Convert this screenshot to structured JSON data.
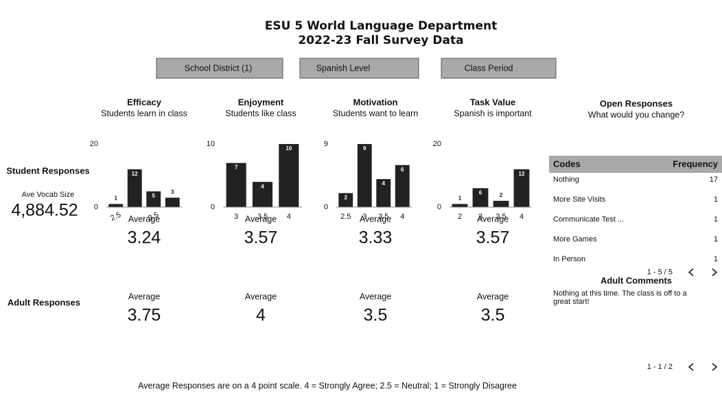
{
  "header": {
    "title": "ESU 5 World Language Department",
    "subtitle": "2022-23 Fall Survey Data"
  },
  "filters": [
    "School District (1)",
    "Spanish Level",
    "Class Period"
  ],
  "row_labels": {
    "student": "Student Responses",
    "adult": "Adult Responses"
  },
  "vocab": {
    "label": "Ave Vocab Size",
    "value": "4,884.52"
  },
  "chart_data": [
    {
      "type": "bar",
      "title": "Efficacy",
      "subtitle": "Students learn in class",
      "categories": [
        "2.5",
        null,
        "3.5",
        null
      ],
      "values": [
        1,
        12,
        5,
        3
      ],
      "color": "#222222",
      "ylim": [
        0,
        20
      ],
      "yticks": [
        0,
        20
      ]
    },
    {
      "type": "bar",
      "title": "Enjoyment",
      "subtitle": "Students like class",
      "categories": [
        "3",
        "3.5",
        "4"
      ],
      "values": [
        7,
        4,
        10
      ],
      "color": "#222222",
      "ylim": [
        0,
        10
      ],
      "yticks": [
        0,
        10
      ]
    },
    {
      "type": "bar",
      "title": "Motivation",
      "subtitle": "Students want to learn",
      "categories": [
        "2.5",
        "3",
        "3.5",
        "4"
      ],
      "values": [
        2,
        9,
        4,
        6
      ],
      "color": "#222222",
      "ylim": [
        0,
        9
      ],
      "yticks": [
        0,
        9
      ]
    },
    {
      "type": "bar",
      "title": "Task Value",
      "subtitle": "Spanish is important",
      "categories": [
        "2",
        "3",
        "3.5",
        "4"
      ],
      "values": [
        1,
        6,
        2,
        12
      ],
      "color": "#222222",
      "ylim": [
        0,
        20
      ],
      "yticks": [
        0,
        20
      ]
    }
  ],
  "average_label": "Average",
  "student_averages": [
    3.24,
    3.57,
    3.33,
    3.57
  ],
  "adult_averages": [
    3.75,
    4,
    3.5,
    3.5
  ],
  "open_responses": {
    "title": "Open Responses",
    "subtitle": "What would you change?",
    "columns": [
      "Codes",
      "Frequency"
    ],
    "rows": [
      [
        "Nothing",
        17
      ],
      [
        "More Site Visits",
        1
      ],
      [
        "Communicate Test ...",
        1
      ],
      [
        "More Games",
        1
      ],
      [
        "In Person",
        1
      ]
    ],
    "pagination": "1 - 5 / 5"
  },
  "adult_comments": {
    "title": "Adult Comments",
    "lines": [
      "Nothing at this time. The class is off to a",
      "great start!"
    ],
    "pagination": "1 - 1 / 2"
  },
  "footer": "Average Responses are on a 4 point scale. 4 = Strongly Agree; 2.5 = Neutral; 1 = Strongly Disagree"
}
